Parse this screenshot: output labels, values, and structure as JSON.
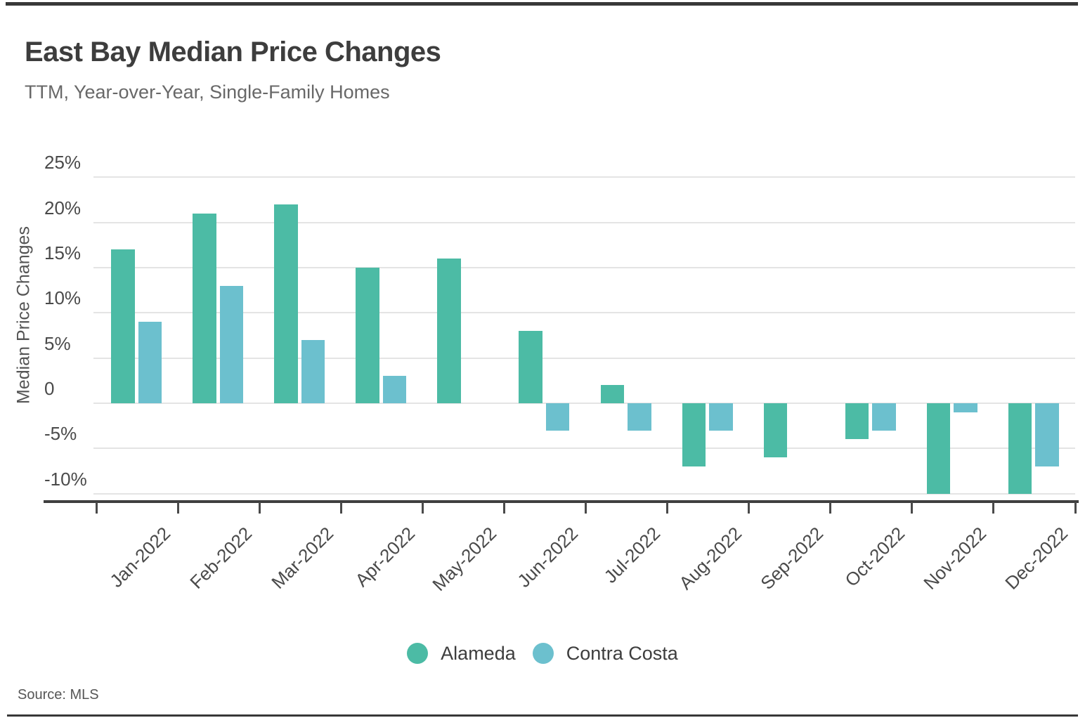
{
  "header": {
    "title": "East Bay Median Price Changes",
    "subtitle": "TTM, Year-over-Year, Single-Family Homes"
  },
  "chart_data": {
    "type": "bar",
    "title": "East Bay Median Price Changes",
    "subtitle": "TTM, Year-over-Year, Single-Family Homes",
    "categories": [
      "Jan-2022",
      "Feb-2022",
      "Mar-2022",
      "Apr-2022",
      "May-2022",
      "Jun-2022",
      "Jul-2022",
      "Aug-2022",
      "Sep-2022",
      "Oct-2022",
      "Nov-2022",
      "Dec-2022"
    ],
    "series": [
      {
        "name": "Alameda",
        "color": "#4CBBA5",
        "values": [
          17,
          21,
          22,
          15,
          16,
          8,
          2,
          -7,
          -6,
          -4,
          -10,
          -10
        ]
      },
      {
        "name": "Contra Costa",
        "color": "#6CC0CE",
        "values": [
          9,
          13,
          7,
          3,
          0,
          -3,
          -3,
          -3,
          0,
          -3,
          -1,
          -7
        ]
      }
    ],
    "xlabel": "",
    "ylabel": "Median Price Changes",
    "yticks": [
      {
        "value": 25,
        "label": "25%"
      },
      {
        "value": 20,
        "label": "20%"
      },
      {
        "value": 15,
        "label": "15%"
      },
      {
        "value": 10,
        "label": "10%"
      },
      {
        "value": 5,
        "label": "5%"
      },
      {
        "value": 0,
        "label": "0"
      },
      {
        "value": -5,
        "label": "-5%"
      },
      {
        "value": -10,
        "label": "-10%"
      }
    ],
    "ylim": [
      -11,
      27
    ],
    "grid": true,
    "legend_position": "bottom"
  },
  "footer": {
    "source_label": "Source:",
    "source_value": "MLS"
  }
}
